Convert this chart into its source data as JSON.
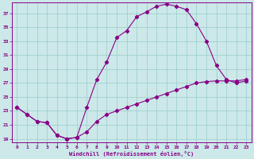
{
  "xlabel": "Windchill (Refroidissement éolien,°C)",
  "bg_color": "#cce8e8",
  "line_color": "#880088",
  "grid_color": "#99cccc",
  "xlim": [
    -0.5,
    23.5
  ],
  "ylim": [
    18.5,
    38.5
  ],
  "xticks": [
    0,
    1,
    2,
    3,
    4,
    5,
    6,
    7,
    8,
    9,
    10,
    11,
    12,
    13,
    14,
    15,
    16,
    17,
    18,
    19,
    20,
    21,
    22,
    23
  ],
  "yticks": [
    19,
    21,
    23,
    25,
    27,
    29,
    31,
    33,
    35,
    37
  ],
  "curve1_x": [
    0,
    1,
    2,
    3,
    4,
    5,
    6,
    7,
    8,
    9,
    10,
    11,
    12,
    13,
    14,
    15,
    16,
    17,
    18,
    19,
    20,
    21,
    22,
    23
  ],
  "curve1_y": [
    23.5,
    22.5,
    21.5,
    21.3,
    19.5,
    19.0,
    19.2,
    23.5,
    27.5,
    30.0,
    33.5,
    34.5,
    36.5,
    37.2,
    38.0,
    38.3,
    38.0,
    37.5,
    35.5,
    33.0,
    29.5,
    27.5,
    27.0,
    27.3
  ],
  "curve2_x": [
    0,
    1,
    2,
    3,
    4,
    5,
    6,
    7,
    8,
    9,
    10,
    11,
    12,
    13,
    14,
    15,
    16,
    17,
    18,
    19,
    20,
    21,
    22,
    23
  ],
  "curve2_y": [
    23.5,
    22.5,
    21.5,
    21.3,
    19.5,
    19.0,
    19.2,
    20.0,
    21.5,
    22.5,
    23.0,
    23.5,
    24.0,
    24.5,
    25.0,
    25.5,
    26.0,
    26.5,
    27.0,
    27.2,
    27.3,
    27.3,
    27.3,
    27.5
  ]
}
